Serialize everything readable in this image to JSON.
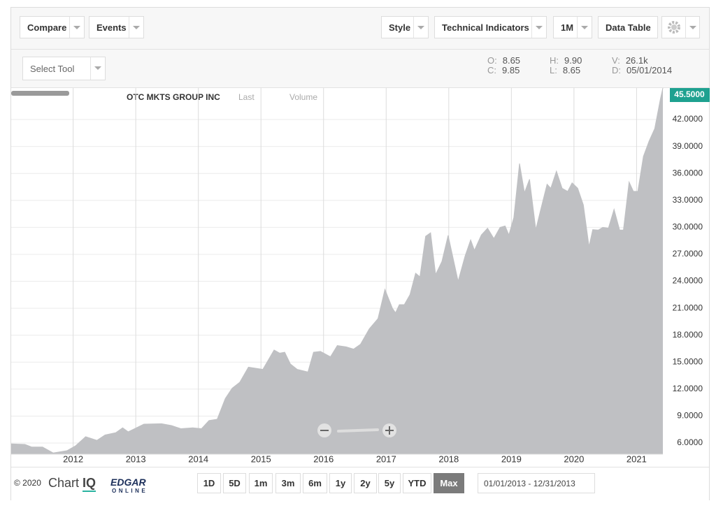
{
  "toolbar": {
    "left": [
      "Compare",
      "Events"
    ],
    "right": [
      "Style",
      "Technical Indicators",
      "1M",
      "Data Table"
    ]
  },
  "select_tool": "Select Tool",
  "ohlc": [
    {
      "label": "O:",
      "value": "8.65"
    },
    {
      "label": "C:",
      "value": "9.85"
    },
    {
      "label": "H:",
      "value": "9.90"
    },
    {
      "label": "L:",
      "value": "8.65"
    },
    {
      "label": "V:",
      "value": "26.1k"
    },
    {
      "label": "D:",
      "value": "05/01/2014"
    }
  ],
  "chart_data": {
    "type": "area",
    "title": "OTC MKTS GROUP INC",
    "volume_label": "Volume",
    "series": [
      {
        "name": "Last",
        "color": "#bfc0c3",
        "x": [
          2011.01,
          2011.23,
          2011.34,
          2011.51,
          2011.68,
          2011.9,
          2012.04,
          2012.2,
          2012.38,
          2012.51,
          2012.68,
          2012.79,
          2012.88,
          2013.13,
          2013.41,
          2013.57,
          2013.72,
          2013.91,
          2014.05,
          2014.17,
          2014.3,
          2014.43,
          2014.54,
          2014.66,
          2014.8,
          2015.03,
          2015.21,
          2015.3,
          2015.38,
          2015.47,
          2015.58,
          2015.75,
          2015.84,
          2015.95,
          2016.11,
          2016.22,
          2016.36,
          2016.48,
          2016.59,
          2016.73,
          2016.87,
          2016.98,
          2017.1,
          2017.15,
          2017.21,
          2017.29,
          2017.38,
          2017.47,
          2017.54,
          2017.63,
          2017.71,
          2017.79,
          2017.89,
          2017.99,
          2018.15,
          2018.26,
          2018.35,
          2018.41,
          2018.52,
          2018.62,
          2018.72,
          2018.82,
          2018.9,
          2018.96,
          2019.04,
          2019.13,
          2019.21,
          2019.29,
          2019.39,
          2019.47,
          2019.57,
          2019.63,
          2019.72,
          2019.81,
          2019.9,
          2019.97,
          2020.06,
          2020.15,
          2020.24,
          2020.3,
          2020.39,
          2020.46,
          2020.55,
          2020.64,
          2020.73,
          2020.79,
          2020.88,
          2020.95,
          2021.02,
          2021.11,
          2021.2,
          2021.29,
          2021.38,
          2021.42
        ],
        "values": [
          5.9,
          5.85,
          5.55,
          5.55,
          4.9,
          5.15,
          5.7,
          6.7,
          6.3,
          6.9,
          7.15,
          7.7,
          7.25,
          8.1,
          8.15,
          7.95,
          7.6,
          7.7,
          7.6,
          8.5,
          8.65,
          10.95,
          12.1,
          12.75,
          14.45,
          14.2,
          16.35,
          16.0,
          16.1,
          14.8,
          14.2,
          13.9,
          16.1,
          16.2,
          15.6,
          16.85,
          16.7,
          16.45,
          17.0,
          18.7,
          19.85,
          23.1,
          21.0,
          20.5,
          21.4,
          21.4,
          22.5,
          24.9,
          24.5,
          29.0,
          29.4,
          24.75,
          26.2,
          29.1,
          24.0,
          26.8,
          28.6,
          27.45,
          29.15,
          29.9,
          28.75,
          30.0,
          30.15,
          29.15,
          31.1,
          37.1,
          33.85,
          35.35,
          29.75,
          32.0,
          34.8,
          34.35,
          36.25,
          34.35,
          34.0,
          34.95,
          34.35,
          32.5,
          27.85,
          29.75,
          29.7,
          30.0,
          29.9,
          32.0,
          29.7,
          29.7,
          35.05,
          34.0,
          34.0,
          37.9,
          39.6,
          41.0,
          44.25,
          45.5
        ]
      }
    ],
    "current_price": {
      "value": 45.5,
      "label": "45.5000"
    },
    "xlim": [
      2011.01,
      2021.42
    ],
    "xticks": [
      2012,
      2013,
      2014,
      2015,
      2016,
      2017,
      2018,
      2019,
      2020,
      2021
    ],
    "ylim": [
      4.76,
      45.5
    ],
    "yticks": [
      {
        "value": 6,
        "label": "6.0000"
      },
      {
        "value": 9,
        "label": "9.0000"
      },
      {
        "value": 12,
        "label": "12.0000"
      },
      {
        "value": 15,
        "label": "15.0000"
      },
      {
        "value": 18,
        "label": "18.0000"
      },
      {
        "value": 21,
        "label": "21.0000"
      },
      {
        "value": 24,
        "label": "24.0000"
      },
      {
        "value": 27,
        "label": "27.0000"
      },
      {
        "value": 30,
        "label": "30.0000"
      },
      {
        "value": 33,
        "label": "33.0000"
      },
      {
        "value": 36,
        "label": "36.0000"
      },
      {
        "value": 39,
        "label": "39.0000"
      },
      {
        "value": 42,
        "label": "42.0000"
      }
    ],
    "grid": true
  },
  "footer": {
    "copyright": "© 2020",
    "logo_chart": "Chart",
    "logo_iq": "IQ",
    "logo_edgar": "EDGAR",
    "logo_online": "ONLINE",
    "ranges": [
      "1D",
      "5D",
      "1m",
      "3m",
      "6m",
      "1y",
      "2y",
      "5y",
      "YTD",
      "Max"
    ],
    "active_range": 9,
    "date_range": "01/01/2013 - 12/31/2013"
  }
}
